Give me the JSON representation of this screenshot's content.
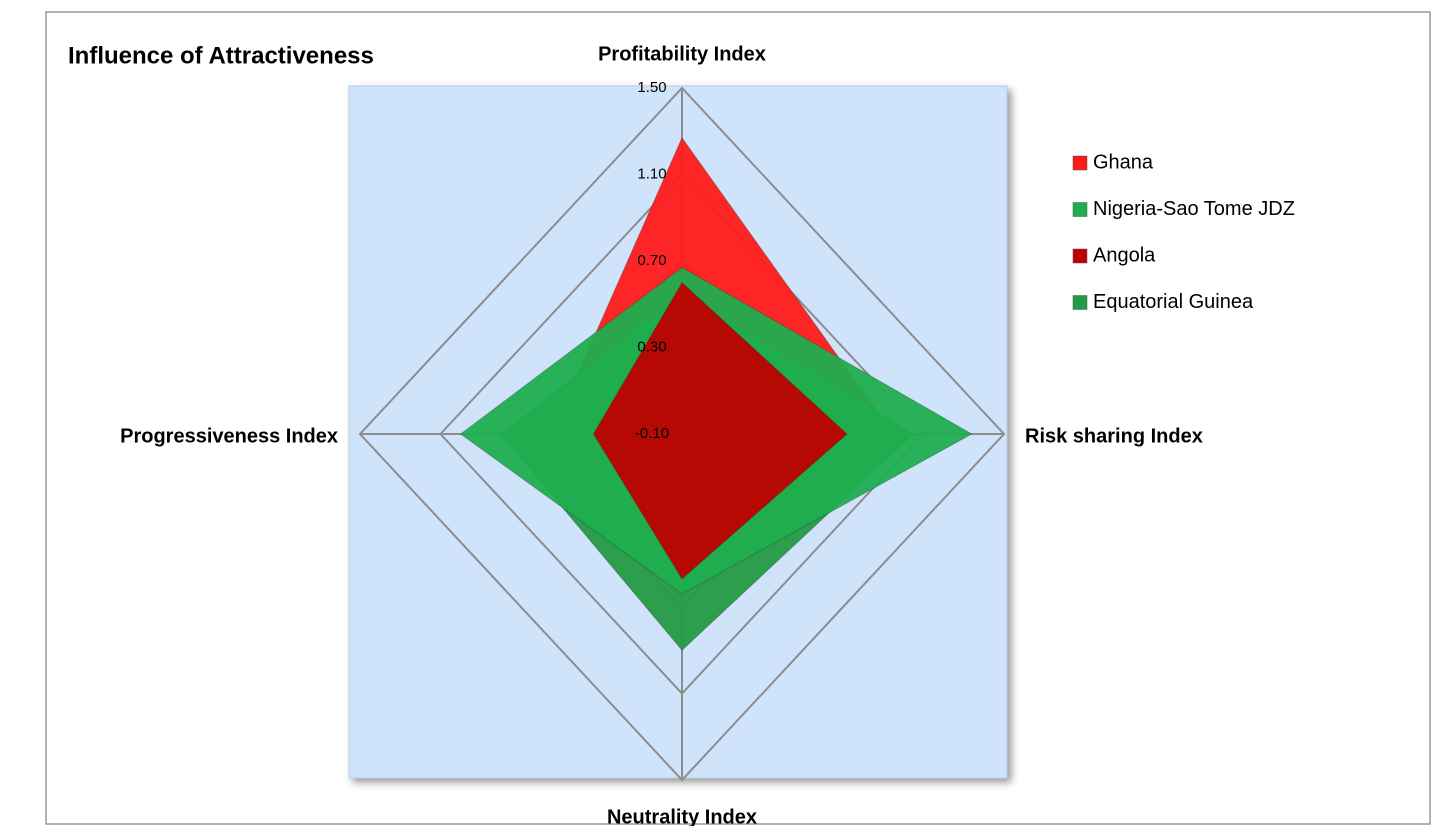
{
  "chart_data": {
    "type": "radar",
    "title": "Influence of Attractiveness",
    "categories": [
      "Profitability Index",
      "Risk sharing Index",
      "Neutrality Index",
      "Progressiveness Index"
    ],
    "rlim": [
      -0.1,
      1.5
    ],
    "rticks": [
      {
        "value": -0.1,
        "label": "-0.10"
      },
      {
        "value": 0.3,
        "label": "0.30"
      },
      {
        "value": 0.7,
        "label": "0.70"
      },
      {
        "value": 1.1,
        "label": "1.10"
      },
      {
        "value": 1.5,
        "label": "1.50"
      }
    ],
    "grid": true,
    "legend": "right",
    "series": [
      {
        "name": "Ghana",
        "color": "#ff1a1a",
        "values": [
          1.27,
          0.95,
          0.55,
          0.55
        ]
      },
      {
        "name": "Nigeria-Sao Tome JDZ",
        "color": "#1fae4f",
        "values": [
          0.67,
          1.34,
          0.64,
          1.0
        ]
      },
      {
        "name": "Angola",
        "color": "#c00000",
        "values": [
          0.6,
          0.72,
          0.57,
          0.34
        ]
      },
      {
        "name": "Equatorial Guinea",
        "color": "#239a45",
        "values": [
          0.55,
          1.05,
          0.9,
          0.8
        ]
      }
    ]
  }
}
